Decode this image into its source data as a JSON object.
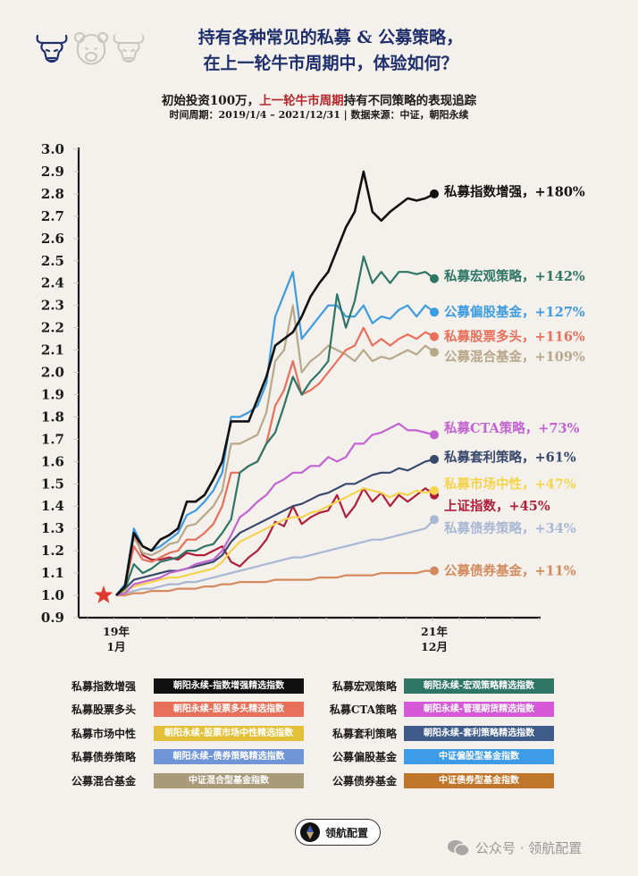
{
  "header": {
    "title_line1": "持有各种常见的私募 & 公募策略，",
    "title_line2": "在上一轮牛市周期中，体验如何？",
    "subtitle_pre": "初始投资100万，",
    "subtitle_red": "上一轮牛市周期",
    "subtitle_post": "持有不同策略的表现追踪",
    "period": "时间周期：2019/1/4 – 2021/12/31 | 数据来源：中证，朝阳永续",
    "icons": [
      "bull-icon",
      "bear-icon",
      "bull-icon"
    ]
  },
  "chart_data": {
    "type": "line",
    "title": "初始投资100万，上一轮牛市周期持有不同策略的表现追踪",
    "xlabel": "",
    "ylabel": "",
    "ylim": [
      0.9,
      3.0
    ],
    "yticks": [
      "0.9",
      "1.0",
      "1.1",
      "1.2",
      "1.3",
      "1.4",
      "1.5",
      "1.6",
      "1.7",
      "1.8",
      "1.9",
      "2.0",
      "2.1",
      "2.2",
      "2.3",
      "2.4",
      "2.5",
      "2.6",
      "2.7",
      "2.8",
      "2.9",
      "3.0"
    ],
    "xticks": [
      {
        "label1": "19年",
        "label2": "1月",
        "index": 0
      },
      {
        "label1": "21年",
        "label2": "12月",
        "index": 36
      }
    ],
    "x_range": [
      "2019-01",
      "2021-12"
    ],
    "grid": false,
    "start_marker": {
      "value": 1.0,
      "symbol": "star",
      "color": "#e03a2e"
    },
    "series": [
      {
        "name": "私募指数增强",
        "label": "私募指数增强，+180%",
        "color": "#111111",
        "final": 2.8,
        "values": [
          1.0,
          1.04,
          1.28,
          1.22,
          1.2,
          1.25,
          1.27,
          1.3,
          1.42,
          1.42,
          1.45,
          1.52,
          1.6,
          1.78,
          1.78,
          1.78,
          1.88,
          1.98,
          2.12,
          2.15,
          2.18,
          2.25,
          2.34,
          2.4,
          2.45,
          2.55,
          2.65,
          2.72,
          2.9,
          2.72,
          2.68,
          2.72,
          2.75,
          2.78,
          2.77,
          2.78,
          2.8
        ]
      },
      {
        "name": "私募宏观策略",
        "label": "私募宏观策略，+142%",
        "color": "#2e7566",
        "final": 2.42,
        "values": [
          1.0,
          1.03,
          1.14,
          1.1,
          1.12,
          1.15,
          1.16,
          1.17,
          1.2,
          1.2,
          1.22,
          1.23,
          1.28,
          1.34,
          1.55,
          1.58,
          1.6,
          1.68,
          1.73,
          1.85,
          1.98,
          1.9,
          1.96,
          2.0,
          2.05,
          2.35,
          2.2,
          2.32,
          2.52,
          2.4,
          2.45,
          2.4,
          2.45,
          2.45,
          2.44,
          2.45,
          2.42
        ]
      },
      {
        "name": "公募偏股基金",
        "label": "公募偏股基金，+127%",
        "color": "#3d9be0",
        "final": 2.27,
        "values": [
          1.0,
          1.05,
          1.3,
          1.22,
          1.2,
          1.22,
          1.25,
          1.28,
          1.36,
          1.38,
          1.42,
          1.47,
          1.55,
          1.8,
          1.8,
          1.82,
          1.85,
          1.95,
          2.25,
          2.35,
          2.45,
          2.15,
          2.2,
          2.25,
          2.3,
          2.3,
          2.25,
          2.25,
          2.3,
          2.22,
          2.25,
          2.24,
          2.28,
          2.3,
          2.25,
          2.3,
          2.27
        ]
      },
      {
        "name": "私募股票多头",
        "label": "私募股票多头，+116%",
        "color": "#e8705a",
        "final": 2.16,
        "values": [
          1.0,
          1.04,
          1.22,
          1.16,
          1.15,
          1.17,
          1.19,
          1.2,
          1.25,
          1.25,
          1.28,
          1.32,
          1.4,
          1.55,
          1.55,
          1.58,
          1.6,
          1.68,
          1.85,
          1.92,
          2.05,
          1.9,
          1.92,
          1.95,
          2.0,
          2.05,
          2.1,
          2.12,
          2.2,
          2.12,
          2.15,
          2.12,
          2.15,
          2.17,
          2.15,
          2.18,
          2.16
        ]
      },
      {
        "name": "公募混合基金",
        "label": "公募混合基金，+109%",
        "color": "#b8a88a",
        "final": 2.09,
        "values": [
          1.0,
          1.05,
          1.26,
          1.19,
          1.18,
          1.2,
          1.23,
          1.24,
          1.31,
          1.32,
          1.36,
          1.4,
          1.47,
          1.68,
          1.68,
          1.7,
          1.72,
          1.82,
          2.05,
          2.1,
          2.3,
          2.0,
          2.05,
          2.08,
          2.12,
          2.1,
          2.08,
          2.05,
          2.1,
          2.05,
          2.07,
          2.06,
          2.08,
          2.1,
          2.08,
          2.12,
          2.09
        ]
      },
      {
        "name": "私募CTA策略",
        "label": "私募CTA策略，+73%",
        "color": "#c264d0",
        "final": 1.72,
        "values": [
          1.0,
          1.01,
          1.05,
          1.06,
          1.07,
          1.08,
          1.1,
          1.11,
          1.12,
          1.14,
          1.15,
          1.16,
          1.2,
          1.27,
          1.35,
          1.38,
          1.42,
          1.45,
          1.5,
          1.52,
          1.55,
          1.55,
          1.58,
          1.58,
          1.62,
          1.6,
          1.62,
          1.68,
          1.68,
          1.72,
          1.73,
          1.75,
          1.77,
          1.74,
          1.74,
          1.73,
          1.72
        ]
      },
      {
        "name": "私募套利策略",
        "label": "私募套利策略，+61%",
        "color": "#37486b",
        "final": 1.61,
        "values": [
          1.0,
          1.03,
          1.07,
          1.08,
          1.09,
          1.1,
          1.11,
          1.11,
          1.12,
          1.13,
          1.14,
          1.15,
          1.18,
          1.24,
          1.28,
          1.3,
          1.32,
          1.34,
          1.36,
          1.38,
          1.4,
          1.41,
          1.43,
          1.45,
          1.46,
          1.48,
          1.5,
          1.5,
          1.52,
          1.54,
          1.55,
          1.55,
          1.57,
          1.56,
          1.58,
          1.6,
          1.61
        ]
      },
      {
        "name": "私募市场中性",
        "label": "私募市场中性，+47%",
        "color": "#f3d44a",
        "final": 1.47,
        "values": [
          1.0,
          1.02,
          1.04,
          1.05,
          1.06,
          1.07,
          1.08,
          1.08,
          1.09,
          1.1,
          1.11,
          1.12,
          1.15,
          1.2,
          1.24,
          1.26,
          1.28,
          1.3,
          1.32,
          1.34,
          1.35,
          1.35,
          1.37,
          1.38,
          1.4,
          1.42,
          1.44,
          1.46,
          1.48,
          1.47,
          1.46,
          1.44,
          1.46,
          1.45,
          1.47,
          1.46,
          1.47
        ]
      },
      {
        "name": "上证指数",
        "label": "上证指数，+45%",
        "color": "#b01e3a",
        "final": 1.45,
        "values": [
          1.0,
          1.03,
          1.28,
          1.18,
          1.16,
          1.16,
          1.17,
          1.16,
          1.19,
          1.18,
          1.18,
          1.2,
          1.22,
          1.15,
          1.13,
          1.17,
          1.2,
          1.25,
          1.33,
          1.31,
          1.4,
          1.32,
          1.35,
          1.37,
          1.38,
          1.45,
          1.35,
          1.4,
          1.48,
          1.42,
          1.46,
          1.4,
          1.45,
          1.42,
          1.45,
          1.48,
          1.45
        ]
      },
      {
        "name": "私募债券策略",
        "label": "私募债券策略，+34%",
        "color": "#a8b8d4",
        "final": 1.34,
        "values": [
          1.0,
          1.01,
          1.02,
          1.03,
          1.03,
          1.04,
          1.05,
          1.05,
          1.06,
          1.06,
          1.07,
          1.08,
          1.09,
          1.1,
          1.11,
          1.12,
          1.13,
          1.14,
          1.15,
          1.16,
          1.17,
          1.17,
          1.18,
          1.19,
          1.2,
          1.21,
          1.22,
          1.23,
          1.24,
          1.25,
          1.25,
          1.26,
          1.27,
          1.28,
          1.29,
          1.3,
          1.34
        ]
      },
      {
        "name": "公募债券基金",
        "label": "公募债券基金，+11%",
        "color": "#d38a5c",
        "final": 1.11,
        "values": [
          1.0,
          1.0,
          1.01,
          1.01,
          1.02,
          1.02,
          1.02,
          1.03,
          1.03,
          1.03,
          1.04,
          1.04,
          1.05,
          1.05,
          1.06,
          1.06,
          1.06,
          1.06,
          1.07,
          1.07,
          1.07,
          1.07,
          1.07,
          1.08,
          1.08,
          1.08,
          1.09,
          1.09,
          1.09,
          1.09,
          1.1,
          1.1,
          1.1,
          1.1,
          1.1,
          1.11,
          1.11
        ]
      }
    ]
  },
  "legend": {
    "rows": [
      [
        {
          "name": "私募指数增强",
          "chip": "朝阳永续-指数增强精选指数",
          "color": "#111111"
        },
        {
          "name": "私募宏观策略",
          "chip": "朝阳永续-宏观策略精选指数",
          "color": "#2e7566"
        }
      ],
      [
        {
          "name": "私募股票多头",
          "chip": "朝阳永续-股票多头精选指数",
          "color": "#e8705a"
        },
        {
          "name": "私募CTA策略",
          "chip": "朝阳永续-管理期货精选指数",
          "color": "#d65ad8"
        }
      ],
      [
        {
          "name": "私募市场中性",
          "chip": "朝阳永续-股票市场中性精选指数",
          "color": "#e2c139"
        },
        {
          "name": "私募套利策略",
          "chip": "朝阳永续-套利策略精选指数",
          "color": "#3e5b8a"
        }
      ],
      [
        {
          "name": "私募债券策略",
          "chip": "朝阳永续–债券策略精选指数",
          "color": "#6f94d8"
        },
        {
          "name": "公募偏股基金",
          "chip": "中证偏股型基金指数",
          "color": "#3d9be8"
        }
      ],
      [
        {
          "name": "公募混合基金",
          "chip": "中证混合型基金指数",
          "color": "#a99a7a"
        },
        {
          "name": "公募债券基金",
          "chip": "中证债券型基金指数",
          "color": "#c0762a"
        }
      ]
    ]
  },
  "footer": {
    "badge_text": "领航配置",
    "watermark": "公众号 · 领航配置"
  }
}
